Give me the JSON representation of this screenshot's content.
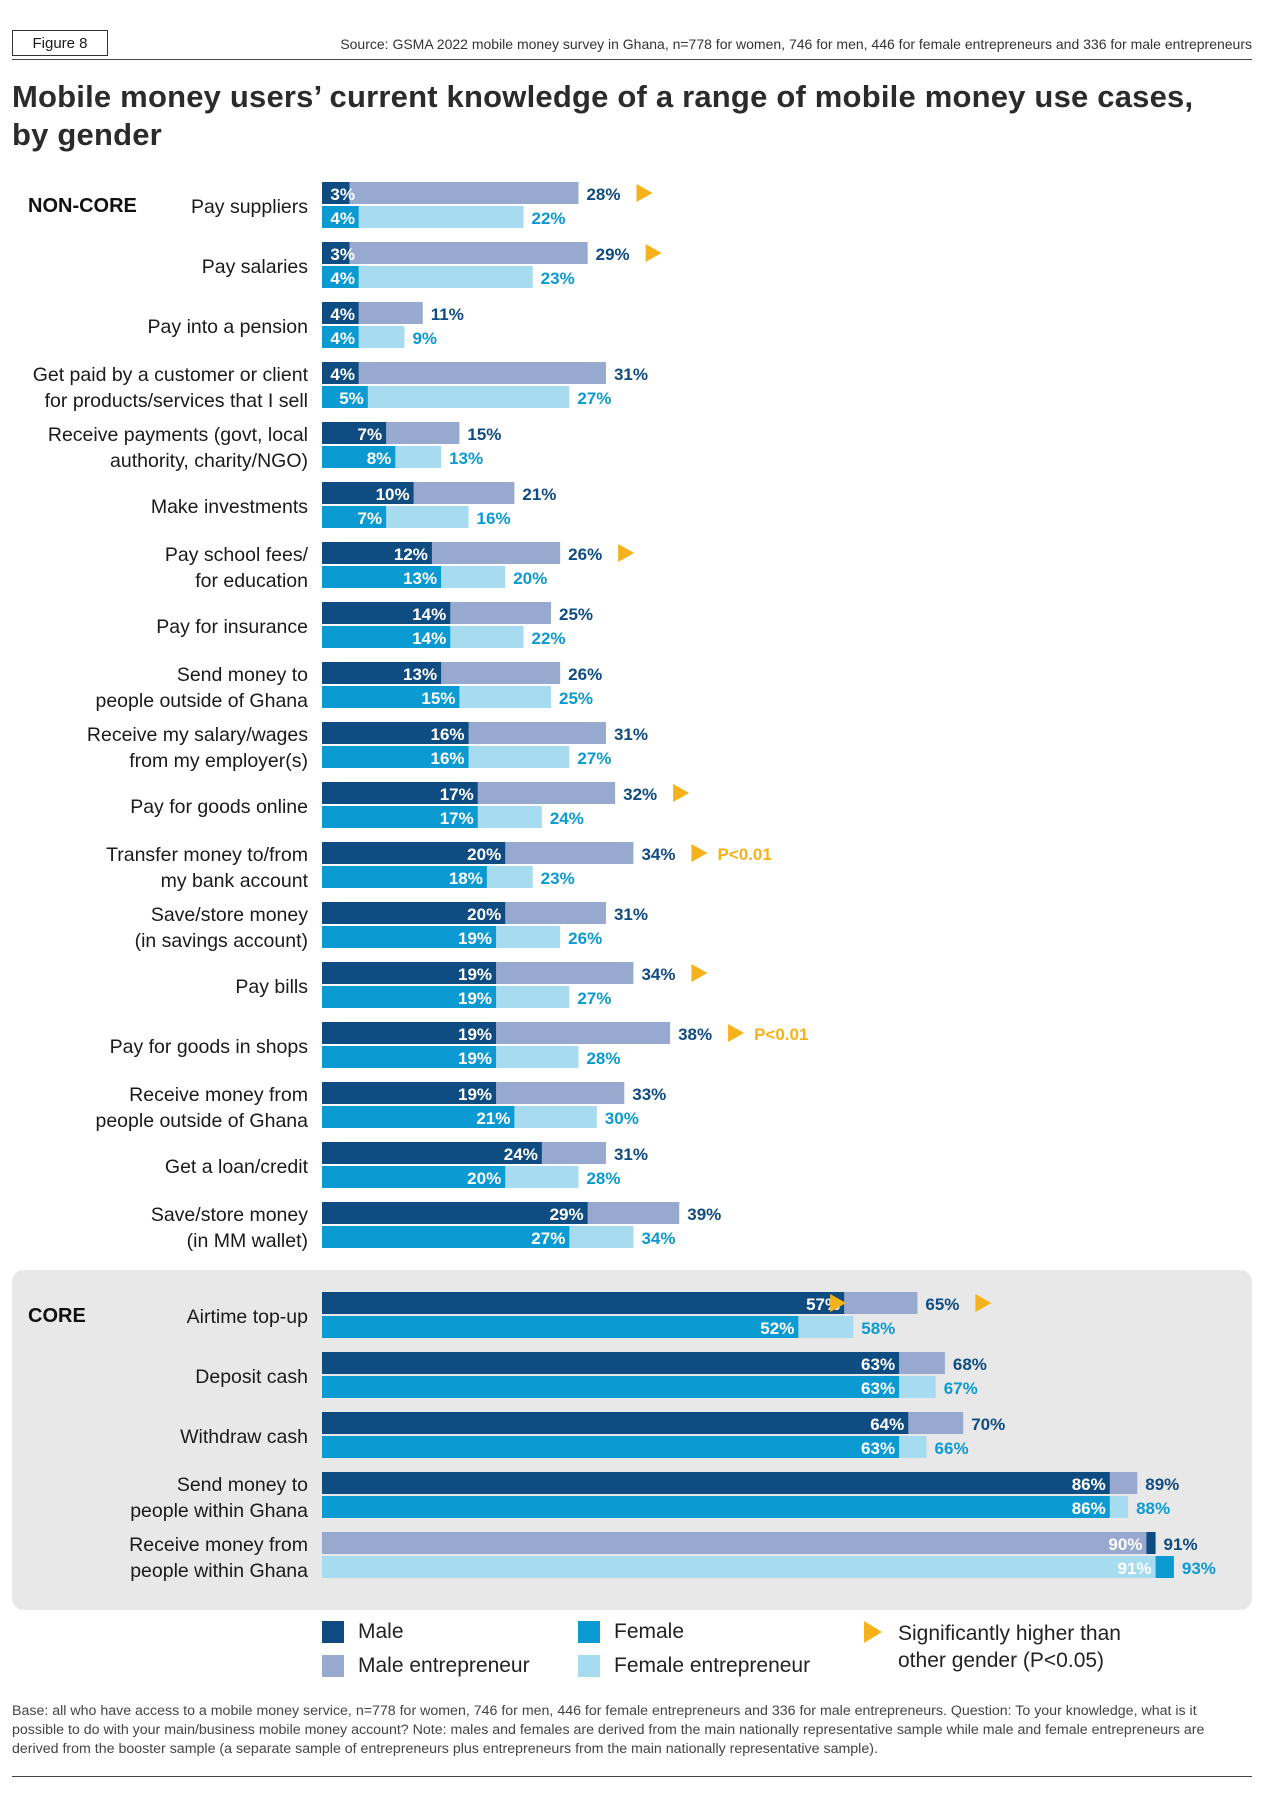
{
  "header": {
    "figure_label": "Figure 8",
    "source": "Source: GSMA 2022 mobile money survey in Ghana, n=778 for women, 746 for men, 446 for female entrepreneurs and 336 for male entrepreneurs",
    "title": "Mobile money users’ current knowledge of a range of mobile money use cases, by gender"
  },
  "colors": {
    "male": "#0f4c81",
    "male_entrepreneur": "#98a9cf",
    "female": "#0b9ad1",
    "female_entrepreneur": "#a6dbf0",
    "significant": "#f6b21b",
    "male_text": "#0f4c81",
    "female_text": "#0b9ad1"
  },
  "legend": {
    "male": "Male",
    "male_entrepreneur": "Male entrepreneur",
    "female": "Female",
    "female_entrepreneur": "Female entrepreneur",
    "significant": "Significantly higher than other gender (P<0.05)"
  },
  "footnote": "Base: all who have access to a mobile money service, n=778 for women, 746 for men, 446 for female entrepreneurs and 336 for male entrepreneurs. Question: To your knowledge, what is it possible to do with your main/business mobile money account? Note: males and females are derived from the main nationally representative sample while male and female entrepreneurs are derived from the booster sample (a separate sample of entrepreneurs plus entrepreneurs from the main nationally representative sample).",
  "chart_data": {
    "type": "bar",
    "orientation": "horizontal",
    "unit": "%",
    "xlim": [
      0,
      100
    ],
    "groups": [
      {
        "name": "NON-CORE",
        "items": [
          {
            "label": [
              "Pay suppliers"
            ],
            "male": 3,
            "male_entrepreneur": 28,
            "female": 4,
            "female_entrepreneur": 22,
            "sig": "entrepreneur"
          },
          {
            "label": [
              "Pay salaries"
            ],
            "male": 3,
            "male_entrepreneur": 29,
            "female": 4,
            "female_entrepreneur": 23,
            "sig": "entrepreneur"
          },
          {
            "label": [
              "Pay into a pension"
            ],
            "male": 4,
            "male_entrepreneur": 11,
            "female": 4,
            "female_entrepreneur": 9
          },
          {
            "label": [
              "Get paid by a customer or client",
              "for products/services that I sell"
            ],
            "male": 4,
            "male_entrepreneur": 31,
            "female": 5,
            "female_entrepreneur": 27
          },
          {
            "label": [
              "Receive payments (govt, local",
              "authority, charity/NGO)"
            ],
            "male": 7,
            "male_entrepreneur": 15,
            "female": 8,
            "female_entrepreneur": 13
          },
          {
            "label": [
              "Make investments"
            ],
            "male": 10,
            "male_entrepreneur": 21,
            "female": 7,
            "female_entrepreneur": 16
          },
          {
            "label": [
              "Pay school fees/",
              "for education"
            ],
            "male": 12,
            "male_entrepreneur": 26,
            "female": 13,
            "female_entrepreneur": 20,
            "sig": "entrepreneur"
          },
          {
            "label": [
              "Pay for insurance"
            ],
            "male": 14,
            "male_entrepreneur": 25,
            "female": 14,
            "female_entrepreneur": 22
          },
          {
            "label": [
              "Send money to",
              "people outside of Ghana"
            ],
            "male": 13,
            "male_entrepreneur": 26,
            "female": 15,
            "female_entrepreneur": 25
          },
          {
            "label": [
              "Receive my salary/wages",
              "from my employer(s)"
            ],
            "male": 16,
            "male_entrepreneur": 31,
            "female": 16,
            "female_entrepreneur": 27
          },
          {
            "label": [
              "Pay for goods online"
            ],
            "male": 17,
            "male_entrepreneur": 32,
            "female": 17,
            "female_entrepreneur": 24,
            "sig": "entrepreneur"
          },
          {
            "label": [
              "Transfer money to/from",
              "my bank account"
            ],
            "male": 20,
            "male_entrepreneur": 34,
            "female": 18,
            "female_entrepreneur": 23,
            "sig": "entrepreneur",
            "note": "P<0.01"
          },
          {
            "label": [
              "Save/store money",
              "(in savings account)"
            ],
            "male": 20,
            "male_entrepreneur": 31,
            "female": 19,
            "female_entrepreneur": 26
          },
          {
            "label": [
              "Pay bills"
            ],
            "male": 19,
            "male_entrepreneur": 34,
            "female": 19,
            "female_entrepreneur": 27,
            "sig": "entrepreneur"
          },
          {
            "label": [
              "Pay for goods in shops"
            ],
            "male": 19,
            "male_entrepreneur": 38,
            "female": 19,
            "female_entrepreneur": 28,
            "sig": "entrepreneur",
            "note": "P<0.01"
          },
          {
            "label": [
              "Receive money from",
              "people outside of Ghana"
            ],
            "male": 19,
            "male_entrepreneur": 33,
            "female": 21,
            "female_entrepreneur": 30
          },
          {
            "label": [
              "Get a loan/credit"
            ],
            "male": 24,
            "male_entrepreneur": 31,
            "female": 20,
            "female_entrepreneur": 28
          },
          {
            "label": [
              "Save/store money",
              "(in MM wallet)"
            ],
            "male": 29,
            "male_entrepreneur": 39,
            "female": 27,
            "female_entrepreneur": 34
          }
        ]
      },
      {
        "name": "CORE",
        "items": [
          {
            "label": [
              "Airtime top-up"
            ],
            "male": 57,
            "male_entrepreneur": 65,
            "female": 52,
            "female_entrepreneur": 58,
            "sig": "both"
          },
          {
            "label": [
              "Deposit cash"
            ],
            "male": 63,
            "male_entrepreneur": 68,
            "female": 63,
            "female_entrepreneur": 67
          },
          {
            "label": [
              "Withdraw cash"
            ],
            "male": 64,
            "male_entrepreneur": 70,
            "female": 63,
            "female_entrepreneur": 66
          },
          {
            "label": [
              "Send money to",
              "people within Ghana"
            ],
            "male": 86,
            "male_entrepreneur": 89,
            "female": 86,
            "female_entrepreneur": 88
          },
          {
            "label": [
              "Receive money from",
              "people within Ghana"
            ],
            "male": 91,
            "male_entrepreneur": 90,
            "female": 93,
            "female_entrepreneur": 91,
            "inverted": true
          }
        ]
      }
    ]
  }
}
